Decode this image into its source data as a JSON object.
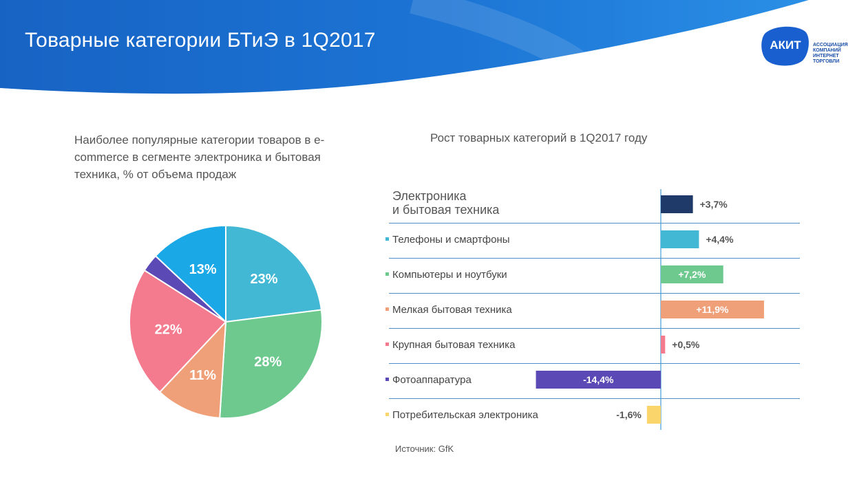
{
  "header": {
    "title": "Товарные категории БТиЭ в 1Q2017",
    "logo_mark": "АКИТ",
    "logo_lines": [
      "АССОЦИАЦИЯ",
      "КОМПАНИЙ",
      "ИНТЕРНЕТ",
      "ТОРГОВЛИ"
    ]
  },
  "colors": {
    "header_blue": "#1b6fd0",
    "grid_line": "#4f8fc8",
    "axis_line": "#8fc2e6"
  },
  "source": "Источник: GfK",
  "chart_data": [
    {
      "type": "pie",
      "title": "Наиболее популярные категории товаров в e-commerce в сегменте электроника и бытовая техника, % от объема продаж",
      "slices": [
        {
          "value": 23,
          "label": "23%",
          "color": "#43b8d4"
        },
        {
          "value": 28,
          "label": "28%",
          "color": "#6ec98f"
        },
        {
          "value": 11,
          "label": "11%",
          "color": "#f0a079"
        },
        {
          "value": 22,
          "label": "22%",
          "color": "#f47a8d"
        },
        {
          "value": 3,
          "label": "",
          "color": "#5b4ab5"
        },
        {
          "value": 13,
          "label": "13%",
          "color": "#1ba8e6"
        }
      ]
    },
    {
      "type": "bar",
      "orientation": "horizontal",
      "title": "Рост товарных категорий в 1Q2017 году",
      "unit": "%",
      "categories": [
        {
          "name": "Электроника и бытовая техника",
          "lines": [
            "Электроника",
            "и бытовая техника"
          ],
          "value": 3.7,
          "label": "+3,7%",
          "color": "#1f3a68",
          "marker": false
        },
        {
          "name": "Телефоны и смартфоны",
          "value": 4.4,
          "label": "+4,4%",
          "color": "#43b8d4",
          "marker": true
        },
        {
          "name": "Компьютеры и ноутбуки",
          "value": 7.2,
          "label": "+7,2%",
          "color": "#6ec98f",
          "marker": true
        },
        {
          "name": "Мелкая бытовая техника",
          "value": 11.9,
          "label": "+11,9%",
          "color": "#f0a079",
          "marker": true
        },
        {
          "name": "Крупная бытовая техника",
          "value": 0.5,
          "label": "+0,5%",
          "color": "#f47a8d",
          "marker": true
        },
        {
          "name": "Фотоаппаратура",
          "value": -14.4,
          "label": "-14,4%",
          "color": "#5b4ab5",
          "marker": true
        },
        {
          "name": "Потребительская электроника",
          "value": -1.6,
          "label": "-1,6%",
          "color": "#f9d56b",
          "marker": true
        }
      ]
    }
  ]
}
